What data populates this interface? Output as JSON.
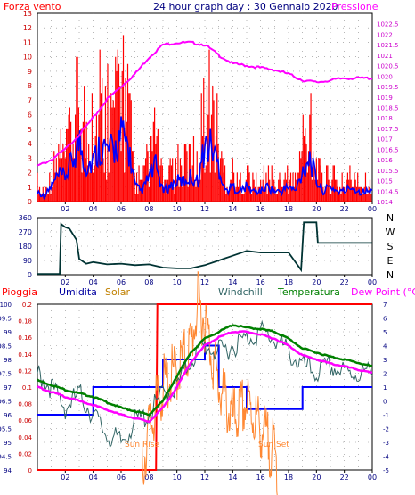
{
  "header": {
    "left_title": "Forza vento",
    "center_title": "24 hour graph day : 30 Gennaio 2020",
    "right_title": "Pressione"
  },
  "bottom_header": {
    "pioggia": "Pioggia",
    "umidita": "Umidita",
    "solar": "Solar",
    "windchill": "Windchill",
    "temperatura": "Temperatura",
    "dewpoint": "Dew Point (°C)"
  },
  "annotations": {
    "sunrise": "Sun Rise",
    "sunset": "Sun Set"
  },
  "colors": {
    "wind": "#ff0000",
    "wind_avg": "#0000ff",
    "pressure": "#ff00ff",
    "direction": "#003333",
    "rain": "#ff0000",
    "humidity": "#0000ff",
    "solar": "#ff8833",
    "windchill": "#336666",
    "temperature": "#008000",
    "dewpoint": "#ff00ff"
  },
  "chart_data": [
    {
      "type": "bar",
      "x": [
        "02",
        "04",
        "06",
        "08",
        "10",
        "12",
        "14",
        "16",
        "18",
        "20",
        "22",
        "00"
      ],
      "left_ticks": [
        "13",
        "12",
        "11",
        "10",
        "9",
        "8",
        "7",
        "6",
        "5",
        "4",
        "3",
        "2",
        "1",
        "0"
      ],
      "right_ticks": [
        "1022.5",
        "1022",
        "1021.5",
        "1021",
        "1020.5",
        "1020",
        "1019.5",
        "1019",
        "1018.5",
        "1018",
        "1017.5",
        "1017",
        "1016.5",
        "1016",
        "1015.5",
        "1015",
        "1014.5",
        "1014"
      ],
      "ylim_left": [
        0,
        13
      ],
      "ylim_right": [
        1014,
        1023
      ],
      "series": [
        {
          "name": "Forza vento",
          "values": [
            [
              0,
              1.0
            ],
            [
              0.5,
              0.5
            ],
            [
              1,
              1.5
            ],
            [
              1.5,
              2.5
            ],
            [
              2,
              2.5
            ],
            [
              2.5,
              4.0
            ],
            [
              3,
              6.0
            ],
            [
              3.5,
              3.5
            ],
            [
              4,
              4.0
            ],
            [
              4.5,
              5.5
            ],
            [
              5,
              5.0
            ],
            [
              5.5,
              5.0
            ],
            [
              6,
              6.5
            ],
            [
              6.5,
              5.5
            ],
            [
              7,
              1.5
            ],
            [
              7.5,
              1.0
            ],
            [
              8,
              2.5
            ],
            [
              8.5,
              3.5
            ],
            [
              9,
              1.0
            ],
            [
              9.5,
              1.5
            ],
            [
              10,
              2.0
            ],
            [
              10.5,
              2.0
            ],
            [
              11,
              2.5
            ],
            [
              11.5,
              2.0
            ],
            [
              12,
              5.5
            ],
            [
              12.5,
              5.5
            ],
            [
              13,
              3.5
            ],
            [
              13.5,
              1.0
            ],
            [
              14,
              1.5
            ],
            [
              14.5,
              1.0
            ],
            [
              15,
              1.5
            ],
            [
              15.5,
              1.0
            ],
            [
              16,
              1.0
            ],
            [
              16.5,
              1.5
            ],
            [
              17,
              1.0
            ],
            [
              17.5,
              1.0
            ],
            [
              18,
              1.5
            ],
            [
              18.5,
              1.0
            ],
            [
              19,
              3.0
            ],
            [
              19.5,
              4.5
            ],
            [
              20,
              2.0
            ],
            [
              20.5,
              1.0
            ],
            [
              21,
              1.5
            ],
            [
              21.5,
              1.0
            ],
            [
              22,
              1.0
            ],
            [
              22.5,
              1.5
            ],
            [
              23,
              1.0
            ],
            [
              23.5,
              1.0
            ],
            [
              24,
              1.0
            ]
          ]
        },
        {
          "name": "Pressione",
          "values": [
            [
              0,
              1015.7
            ],
            [
              1,
              1016.0
            ],
            [
              2,
              1016.5
            ],
            [
              3,
              1017.2
            ],
            [
              4,
              1018.0
            ],
            [
              5,
              1018.9
            ],
            [
              6,
              1019.5
            ],
            [
              7,
              1020.1
            ],
            [
              8,
              1020.9
            ],
            [
              9,
              1021.5
            ],
            [
              10,
              1021.6
            ],
            [
              11,
              1021.6
            ],
            [
              12,
              1021.5
            ],
            [
              13,
              1021.0
            ],
            [
              14,
              1020.6
            ],
            [
              15,
              1020.5
            ],
            [
              16,
              1020.4
            ],
            [
              17,
              1020.3
            ],
            [
              18,
              1020.1
            ],
            [
              19,
              1019.8
            ],
            [
              20,
              1019.7
            ],
            [
              21,
              1019.8
            ],
            [
              22,
              1019.9
            ],
            [
              23,
              1019.9
            ],
            [
              24,
              1019.9
            ]
          ]
        }
      ]
    },
    {
      "type": "line",
      "x": [
        "02",
        "04",
        "06",
        "08",
        "10",
        "12",
        "14",
        "16",
        "18",
        "20",
        "22",
        "00"
      ],
      "left_ticks": [
        "360",
        "270",
        "180",
        "90",
        "0"
      ],
      "right_ticks": [
        "N",
        "W",
        "S",
        "E",
        "N"
      ],
      "ylim": [
        0,
        360
      ],
      "series": [
        {
          "name": "direction",
          "values": [
            [
              0,
              5
            ],
            [
              1.6,
              5
            ],
            [
              1.7,
              320
            ],
            [
              2.0,
              300
            ],
            [
              2.3,
              290
            ],
            [
              2.8,
              220
            ],
            [
              3.0,
              100
            ],
            [
              3.5,
              70
            ],
            [
              4,
              80
            ],
            [
              5,
              65
            ],
            [
              6,
              70
            ],
            [
              7,
              60
            ],
            [
              8,
              65
            ],
            [
              9,
              45
            ],
            [
              10,
              40
            ],
            [
              11,
              40
            ],
            [
              12,
              60
            ],
            [
              13,
              90
            ],
            [
              14,
              120
            ],
            [
              15,
              150
            ],
            [
              16,
              140
            ],
            [
              17,
              140
            ],
            [
              18,
              140
            ],
            [
              18.9,
              30
            ],
            [
              19.1,
              330
            ],
            [
              20,
              330
            ],
            [
              20.1,
              200
            ],
            [
              22,
              200
            ],
            [
              24,
              200
            ]
          ]
        }
      ]
    },
    {
      "type": "line",
      "x": [
        "02",
        "04",
        "06",
        "08",
        "10",
        "12",
        "14",
        "16",
        "18",
        "20",
        "22",
        "00"
      ],
      "left_ticks": [
        "100",
        "99.5",
        "99",
        "98.5",
        "98",
        "97.5",
        "97",
        "96.5",
        "96",
        "95.5",
        "95",
        "94.5",
        "94"
      ],
      "rain_ticks": [
        "0.2",
        "0.18",
        "0.16",
        "0.14",
        "0.12",
        "0.1",
        "0.08",
        "0.06",
        "0.04",
        "0.02",
        "0"
      ],
      "right_ticks": [
        "7",
        "6",
        "5",
        "4",
        "3",
        "2",
        "1",
        "0",
        "-1",
        "-2",
        "-3",
        "-4",
        "-5"
      ],
      "series": [
        {
          "name": "Pioggia",
          "values": [
            [
              0,
              0
            ],
            [
              8.5,
              0
            ],
            [
              8.6,
              0.2
            ],
            [
              24,
              0.2
            ]
          ]
        },
        {
          "name": "Umidita",
          "values": [
            [
              0,
              96
            ],
            [
              2,
              96
            ],
            [
              3,
              96
            ],
            [
              4,
              97
            ],
            [
              7,
              97
            ],
            [
              9,
              98
            ],
            [
              12,
              98.5
            ],
            [
              13,
              97
            ],
            [
              14,
              97
            ],
            [
              15,
              96.2
            ],
            [
              18,
              96.2
            ],
            [
              19,
              97
            ],
            [
              24,
              97
            ]
          ]
        },
        {
          "name": "Temperatura",
          "values": [
            [
              0,
              1.5
            ],
            [
              2,
              0.8
            ],
            [
              4,
              0.3
            ],
            [
              6,
              -0.5
            ],
            [
              8,
              -1.0
            ],
            [
              9,
              0.0
            ],
            [
              10,
              1.8
            ],
            [
              11,
              3.5
            ],
            [
              12,
              4.5
            ],
            [
              13,
              5.0
            ],
            [
              14,
              5.5
            ],
            [
              15,
              5.3
            ],
            [
              16,
              5.2
            ],
            [
              17,
              5.0
            ],
            [
              18,
              4.5
            ],
            [
              19,
              3.8
            ],
            [
              20,
              3.5
            ],
            [
              21,
              3.2
            ],
            [
              22,
              3.0
            ],
            [
              24,
              2.5
            ]
          ]
        },
        {
          "name": "Dew Point (°C)",
          "values": [
            [
              0,
              1.0
            ],
            [
              2,
              0.3
            ],
            [
              4,
              -0.3
            ],
            [
              6,
              -1.0
            ],
            [
              8,
              -1.5
            ],
            [
              9,
              -0.5
            ],
            [
              10,
              1.0
            ],
            [
              11,
              2.8
            ],
            [
              12,
              4.0
            ],
            [
              13,
              4.6
            ],
            [
              14,
              5.0
            ],
            [
              15,
              5.0
            ],
            [
              16,
              4.8
            ],
            [
              17,
              4.5
            ],
            [
              18,
              4.0
            ],
            [
              19,
              3.3
            ],
            [
              20,
              3.0
            ],
            [
              21,
              2.7
            ],
            [
              22,
              2.5
            ],
            [
              24,
              2.0
            ]
          ]
        },
        {
          "name": "Windchill",
          "values": [
            [
              0,
              2.0
            ],
            [
              1,
              1.0
            ],
            [
              2,
              -0.5
            ],
            [
              3,
              0.5
            ],
            [
              4,
              -1.0
            ],
            [
              5,
              -2.5
            ],
            [
              6,
              -3.0
            ],
            [
              7,
              -1.5
            ],
            [
              8,
              -1.0
            ],
            [
              9,
              0.5
            ],
            [
              10,
              1.0
            ],
            [
              11,
              3.0
            ],
            [
              12,
              4.0
            ],
            [
              13,
              3.5
            ],
            [
              14,
              4.0
            ],
            [
              15,
              4.5
            ],
            [
              16,
              5.0
            ],
            [
              17,
              4.5
            ],
            [
              18,
              3.5
            ],
            [
              19,
              2.5
            ],
            [
              20,
              2.0
            ],
            [
              21,
              2.5
            ],
            [
              22,
              2.0
            ],
            [
              24,
              2.0
            ]
          ]
        },
        {
          "name": "Solar",
          "values": [
            [
              7.5,
              0
            ],
            [
              8,
              0.05
            ],
            [
              9,
              0.1
            ],
            [
              10,
              0.12
            ],
            [
              11,
              0.15
            ],
            [
              11.5,
              0.2
            ],
            [
              12,
              0.18
            ],
            [
              13,
              0.1
            ],
            [
              14,
              0.06
            ],
            [
              15,
              0.08
            ],
            [
              16,
              0.05
            ],
            [
              17,
              0.02
            ],
            [
              17.2,
              0
            ]
          ]
        }
      ]
    }
  ]
}
